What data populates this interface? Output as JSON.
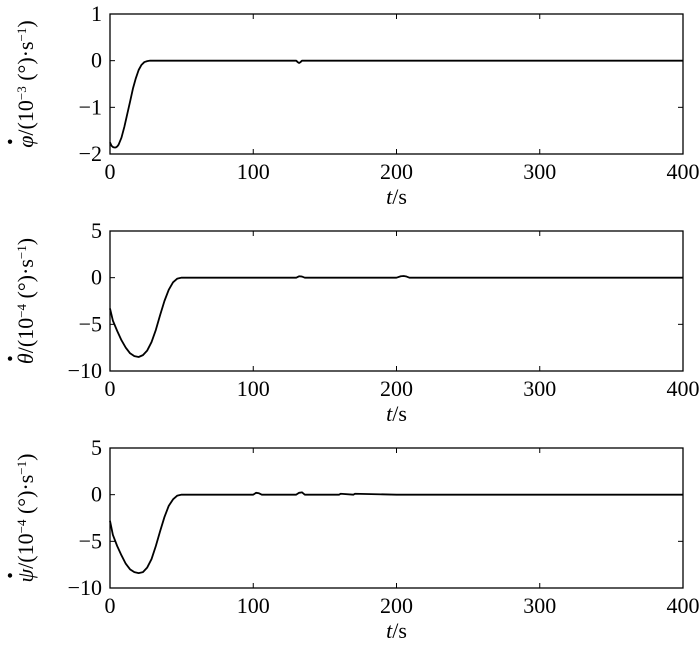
{
  "chart_data": [
    {
      "type": "line",
      "xlabel": {
        "italic": "t",
        "rest": "/s"
      },
      "ylabel": {
        "sym": "φ",
        "pre": "/(10",
        "exp": "−3",
        "mid": " (°)·s",
        "exp2": "−1",
        "post": ")"
      },
      "xlim": [
        0,
        400
      ],
      "ylim": [
        -2,
        1
      ],
      "xticks": [
        "0",
        "100",
        "200",
        "300",
        "400"
      ],
      "yticks": [
        "1",
        "0",
        "−1",
        "−2"
      ],
      "ytick_values": [
        1,
        0,
        -1,
        -2
      ],
      "series": [
        {
          "x": [
            0,
            1,
            2,
            3,
            4,
            5,
            6,
            8,
            10,
            12,
            14,
            16,
            18,
            20,
            22,
            24,
            26,
            28,
            30,
            35,
            40,
            60,
            100,
            130,
            131,
            132,
            133,
            134,
            135,
            200,
            300,
            400
          ],
          "y": [
            -1.75,
            -1.82,
            -1.85,
            -1.86,
            -1.86,
            -1.84,
            -1.8,
            -1.65,
            -1.42,
            -1.15,
            -0.88,
            -0.6,
            -0.38,
            -0.2,
            -0.09,
            -0.03,
            -0.01,
            0,
            0,
            0,
            0,
            0,
            0,
            0,
            -0.03,
            -0.05,
            -0.03,
            0,
            0,
            0,
            0,
            0
          ]
        }
      ]
    },
    {
      "type": "line",
      "xlabel": {
        "italic": "t",
        "rest": "/s"
      },
      "ylabel": {
        "sym": "θ",
        "pre": "/(10",
        "exp": "−4",
        "mid": " (°)·s",
        "exp2": "−1",
        "post": ")"
      },
      "xlim": [
        0,
        400
      ],
      "ylim": [
        -10,
        5
      ],
      "xticks": [
        "0",
        "100",
        "200",
        "300",
        "400"
      ],
      "yticks": [
        "5",
        "0",
        "−5",
        "−10"
      ],
      "ytick_values": [
        5,
        0,
        -5,
        -10
      ],
      "series": [
        {
          "x": [
            0,
            2,
            5,
            8,
            11,
            14,
            17,
            20,
            23,
            26,
            29,
            32,
            35,
            38,
            41,
            44,
            47,
            50,
            55,
            100,
            130,
            132,
            134,
            136,
            200,
            203,
            205,
            207,
            209,
            300,
            400
          ],
          "y": [
            -3.3,
            -4.6,
            -5.7,
            -6.7,
            -7.5,
            -8.1,
            -8.4,
            -8.5,
            -8.3,
            -7.8,
            -6.9,
            -5.6,
            -4.0,
            -2.5,
            -1.3,
            -0.5,
            -0.1,
            0,
            0,
            0,
            0,
            0.15,
            0.12,
            0,
            0,
            0.15,
            0.18,
            0.12,
            0,
            0,
            0
          ]
        }
      ]
    },
    {
      "type": "line",
      "xlabel": {
        "italic": "t",
        "rest": "/s"
      },
      "ylabel": {
        "sym": "ψ",
        "pre": "/(10",
        "exp": "−4",
        "mid": " (°)·s",
        "exp2": "−1",
        "post": ")"
      },
      "xlim": [
        0,
        400
      ],
      "ylim": [
        -10,
        5
      ],
      "xticks": [
        "0",
        "100",
        "200",
        "300",
        "400"
      ],
      "yticks": [
        "5",
        "0",
        "−5",
        "−10"
      ],
      "ytick_values": [
        5,
        0,
        -5,
        -10
      ],
      "series": [
        {
          "x": [
            0,
            2,
            5,
            8,
            11,
            14,
            17,
            20,
            23,
            26,
            29,
            32,
            35,
            38,
            41,
            44,
            47,
            50,
            55,
            100,
            102,
            104,
            106,
            130,
            132,
            134,
            136,
            160,
            161,
            170,
            171,
            200,
            300,
            400
          ],
          "y": [
            -2.8,
            -4.3,
            -5.5,
            -6.5,
            -7.4,
            -8.0,
            -8.3,
            -8.4,
            -8.3,
            -7.8,
            -6.9,
            -5.5,
            -3.9,
            -2.4,
            -1.2,
            -0.5,
            -0.1,
            0,
            0,
            0,
            0.2,
            0.15,
            0,
            0,
            0.2,
            0.25,
            0,
            0,
            0.1,
            0,
            0.1,
            0,
            0,
            0
          ]
        }
      ]
    }
  ]
}
